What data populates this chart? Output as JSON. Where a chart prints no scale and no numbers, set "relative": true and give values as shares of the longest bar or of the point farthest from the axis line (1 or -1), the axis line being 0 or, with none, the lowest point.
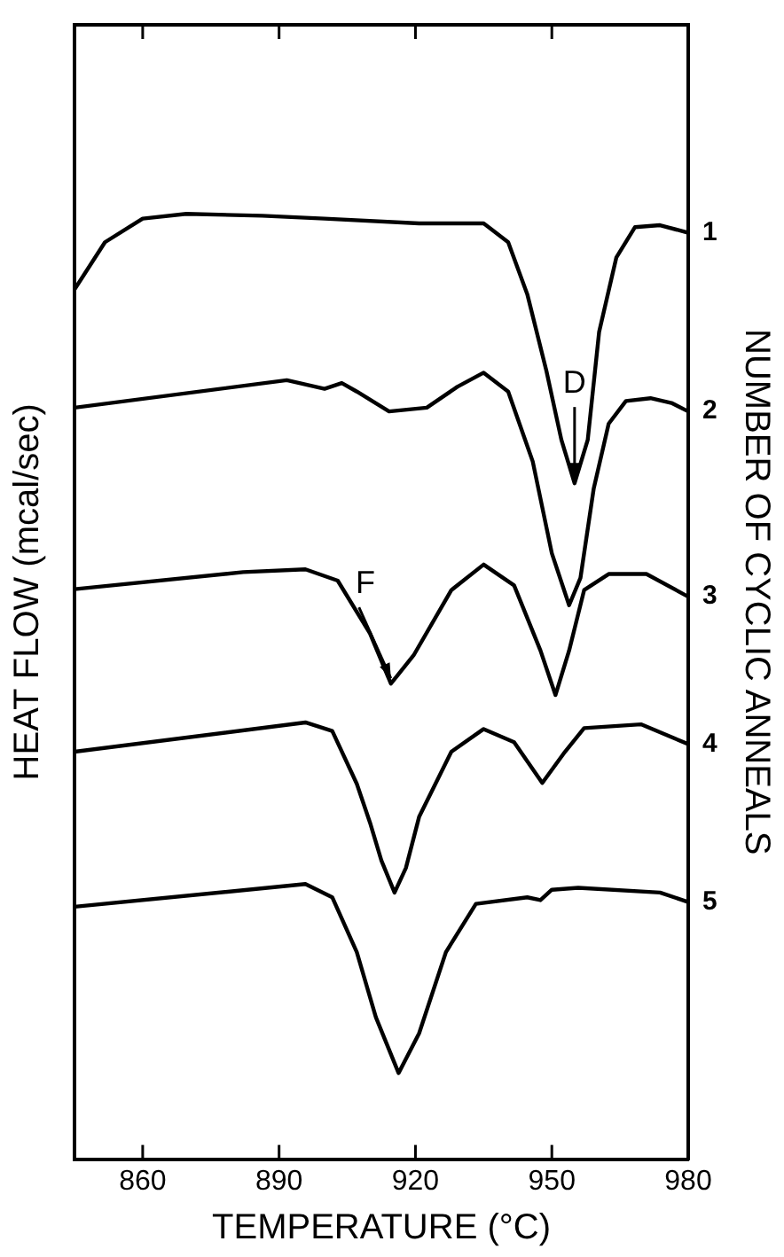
{
  "chart_data": {
    "type": "line",
    "relative": true,
    "xlabel": "TEMPERATURE (°C)",
    "ylabel": "HEAT FLOW (mcal/sec)",
    "y2label": "NUMBER OF CYCLIC ANNEALS",
    "xlim": [
      845,
      980
    ],
    "xticks": [
      860,
      890,
      920,
      950,
      980
    ],
    "legend": false,
    "grid": false,
    "marker": "none",
    "line_style": "solid",
    "tick_labels": "x",
    "annotations": [
      {
        "text": "D",
        "x": 955,
        "y": 0.715
      },
      {
        "text": "F",
        "x": 914.6,
        "y": 0.503
      }
    ],
    "series": [
      {
        "name": "1",
        "color": "#000000",
        "x": [
          845,
          851.7,
          860,
          869.6,
          886.3,
          900,
          920.8,
          935,
          940.4,
          944.6,
          948.8,
          952.1,
          955,
          957.9,
          960.4,
          964.2,
          968.3,
          973.8,
          980
        ],
        "values": [
          0.92,
          0.97,
          0.995,
          1,
          0.998,
          0.995,
          0.99,
          0.99,
          0.97,
          0.915,
          0.834,
          0.761,
          0.715,
          0.761,
          0.875,
          0.954,
          0.986,
          0.988,
          0.98
        ]
      },
      {
        "name": "2",
        "color": "#000000",
        "x": [
          845,
          891.7,
          900,
          903.8,
          907.1,
          914.2,
          922.5,
          929.2,
          935,
          940.4,
          945.8,
          950,
          953.8,
          956.3,
          959.2,
          962.5,
          966.3,
          971.7,
          976.3,
          980
        ],
        "values": [
          0.795,
          0.824,
          0.815,
          0.821,
          0.812,
          0.791,
          0.795,
          0.817,
          0.832,
          0.812,
          0.738,
          0.641,
          0.586,
          0.615,
          0.709,
          0.778,
          0.802,
          0.805,
          0.8,
          0.791
        ]
      },
      {
        "name": "3",
        "color": "#000000",
        "x": [
          845,
          882.1,
          895.8,
          902.9,
          910,
          914.6,
          919.6,
          927.9,
          935,
          941.7,
          947.5,
          950.8,
          953.8,
          957.1,
          962.5,
          970.8,
          980
        ],
        "values": [
          0.603,
          0.621,
          0.624,
          0.612,
          0.556,
          0.503,
          0.533,
          0.602,
          0.629,
          0.607,
          0.538,
          0.491,
          0.538,
          0.602,
          0.619,
          0.619,
          0.595
        ]
      },
      {
        "name": "4",
        "color": "#000000",
        "x": [
          845,
          895.8,
          901.7,
          907.1,
          910,
          912.5,
          915.4,
          917.9,
          920.8,
          927.9,
          935,
          941.7,
          947.9,
          952.9,
          957.1,
          969.6,
          980
        ],
        "values": [
          0.431,
          0.462,
          0.453,
          0.397,
          0.356,
          0.316,
          0.282,
          0.308,
          0.362,
          0.431,
          0.455,
          0.441,
          0.398,
          0.431,
          0.456,
          0.46,
          0.439
        ]
      },
      {
        "name": "5",
        "color": "#000000",
        "x": [
          845,
          895.8,
          901.7,
          907.1,
          911.3,
          916.3,
          920.8,
          926.7,
          933.3,
          944.6,
          947.5,
          950,
          955.8,
          973.8,
          980
        ],
        "values": [
          0.267,
          0.291,
          0.277,
          0.219,
          0.15,
          0.091,
          0.133,
          0.219,
          0.27,
          0.277,
          0.274,
          0.285,
          0.287,
          0.282,
          0.272
        ]
      }
    ]
  }
}
